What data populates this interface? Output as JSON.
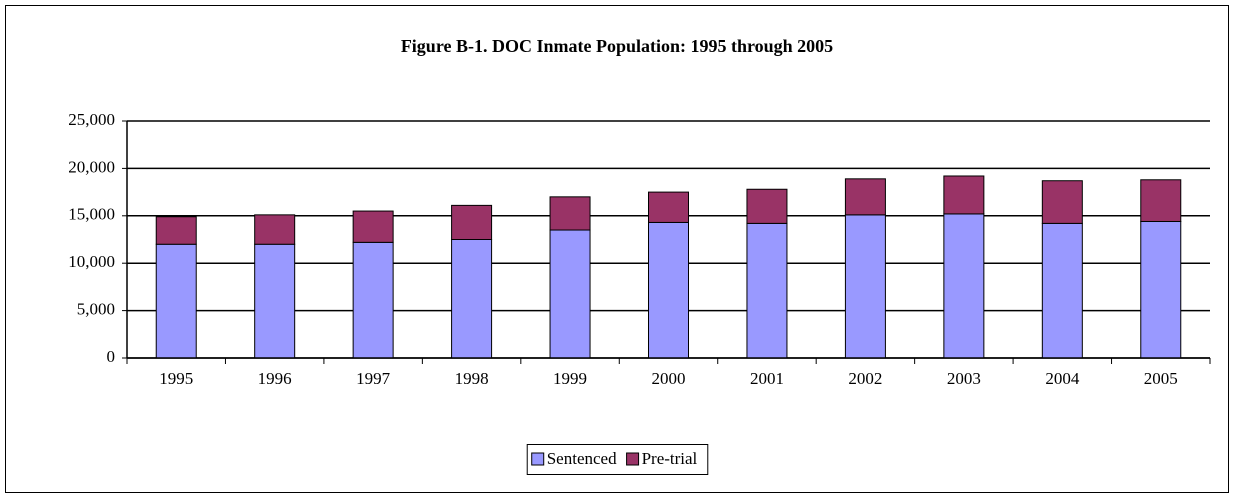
{
  "chart_data": {
    "type": "stacked_bar",
    "title": "Figure B-1.  DOC Inmate Population: 1995 through 2005",
    "categories": [
      "1995",
      "1996",
      "1997",
      "1998",
      "1999",
      "2000",
      "2001",
      "2002",
      "2003",
      "2004",
      "2005"
    ],
    "series": [
      {
        "name": "Sentenced",
        "color": "#9999ff",
        "values": [
          12000,
          12000,
          12200,
          12500,
          13500,
          14300,
          14200,
          15100,
          15200,
          14200,
          14400
        ]
      },
      {
        "name": "Pre-trial",
        "color": "#993366",
        "values": [
          2900,
          3100,
          3300,
          3600,
          3500,
          3200,
          3600,
          3800,
          4000,
          4500,
          4400
        ]
      }
    ],
    "ylim": [
      0,
      25000
    ],
    "yticks": [
      0,
      {
        "value": 5000,
        "label": "5,000"
      },
      {
        "value": 10000,
        "label": "10,000"
      },
      {
        "value": 15000,
        "label": "15,000"
      },
      {
        "value": 20000,
        "label": "20,000"
      },
      {
        "value": 25000,
        "label": "25,000"
      }
    ],
    "grid": true,
    "legend": "bottom"
  }
}
